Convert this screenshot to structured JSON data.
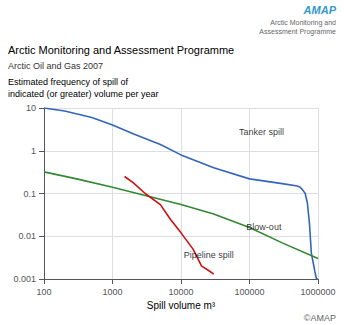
{
  "chart_data": {
    "type": "line",
    "title": "Arctic Monitoring and Assessment Programme",
    "subtitle": "Arctic Oil and Gas 2007",
    "ylabel": "Estimated frequency of spill of\nindicated (or greater) volume per year",
    "xlabel": "Spill volume m³",
    "log": true,
    "grid": true,
    "xlim": [
      100,
      1000000
    ],
    "ylim": [
      0.001,
      10
    ],
    "xticks": [
      100,
      1000,
      10000,
      100000,
      1000000
    ],
    "yticks": [
      0.001,
      0.01,
      0.1,
      1,
      10
    ],
    "series": [
      {
        "name": "Tanker spill",
        "color": "#3366bb",
        "x": [
          100,
          200,
          500,
          1000,
          2000,
          5000,
          10000,
          30000,
          100000,
          300000,
          500000,
          550000,
          600000,
          650000,
          700000,
          750000,
          800000,
          900000,
          950000,
          1000000
        ],
        "values": [
          10,
          8.5,
          6.0,
          4.0,
          2.5,
          1.4,
          0.8,
          0.4,
          0.22,
          0.17,
          0.15,
          0.14,
          0.12,
          0.1,
          0.06,
          0.02,
          0.004,
          0.0015,
          0.001,
          0.001
        ]
      },
      {
        "name": "Blow-out",
        "color": "#338833",
        "x": [
          100,
          300,
          1000,
          3000,
          10000,
          30000,
          100000,
          300000,
          1000000
        ],
        "values": [
          0.32,
          0.22,
          0.14,
          0.09,
          0.055,
          0.033,
          0.016,
          0.007,
          0.003
        ]
      },
      {
        "name": "Pipeline spill",
        "color": "#cc1111",
        "x": [
          1500,
          2000,
          3000,
          5000,
          7000,
          10000,
          15000,
          20000,
          25000,
          30000
        ],
        "values": [
          0.25,
          0.18,
          0.1,
          0.055,
          0.025,
          0.012,
          0.005,
          0.002,
          0.0016,
          0.0013
        ]
      }
    ],
    "annotations": [
      {
        "text": "Tanker spill",
        "x": 70000,
        "y": 2.2
      },
      {
        "text": "Blow-out",
        "x": 90000,
        "y": 0.013
      },
      {
        "text": "Pipeline spill",
        "x": 11000,
        "y": 0.0028
      }
    ],
    "logo": [
      {
        "text": "AMAP",
        "color": "#3399cc"
      },
      {
        "text": "Arctic Monitoring and",
        "color": "#666666"
      },
      {
        "text": "Assessment Programme",
        "color": "#666666"
      }
    ],
    "copyright": "©AMAP"
  }
}
